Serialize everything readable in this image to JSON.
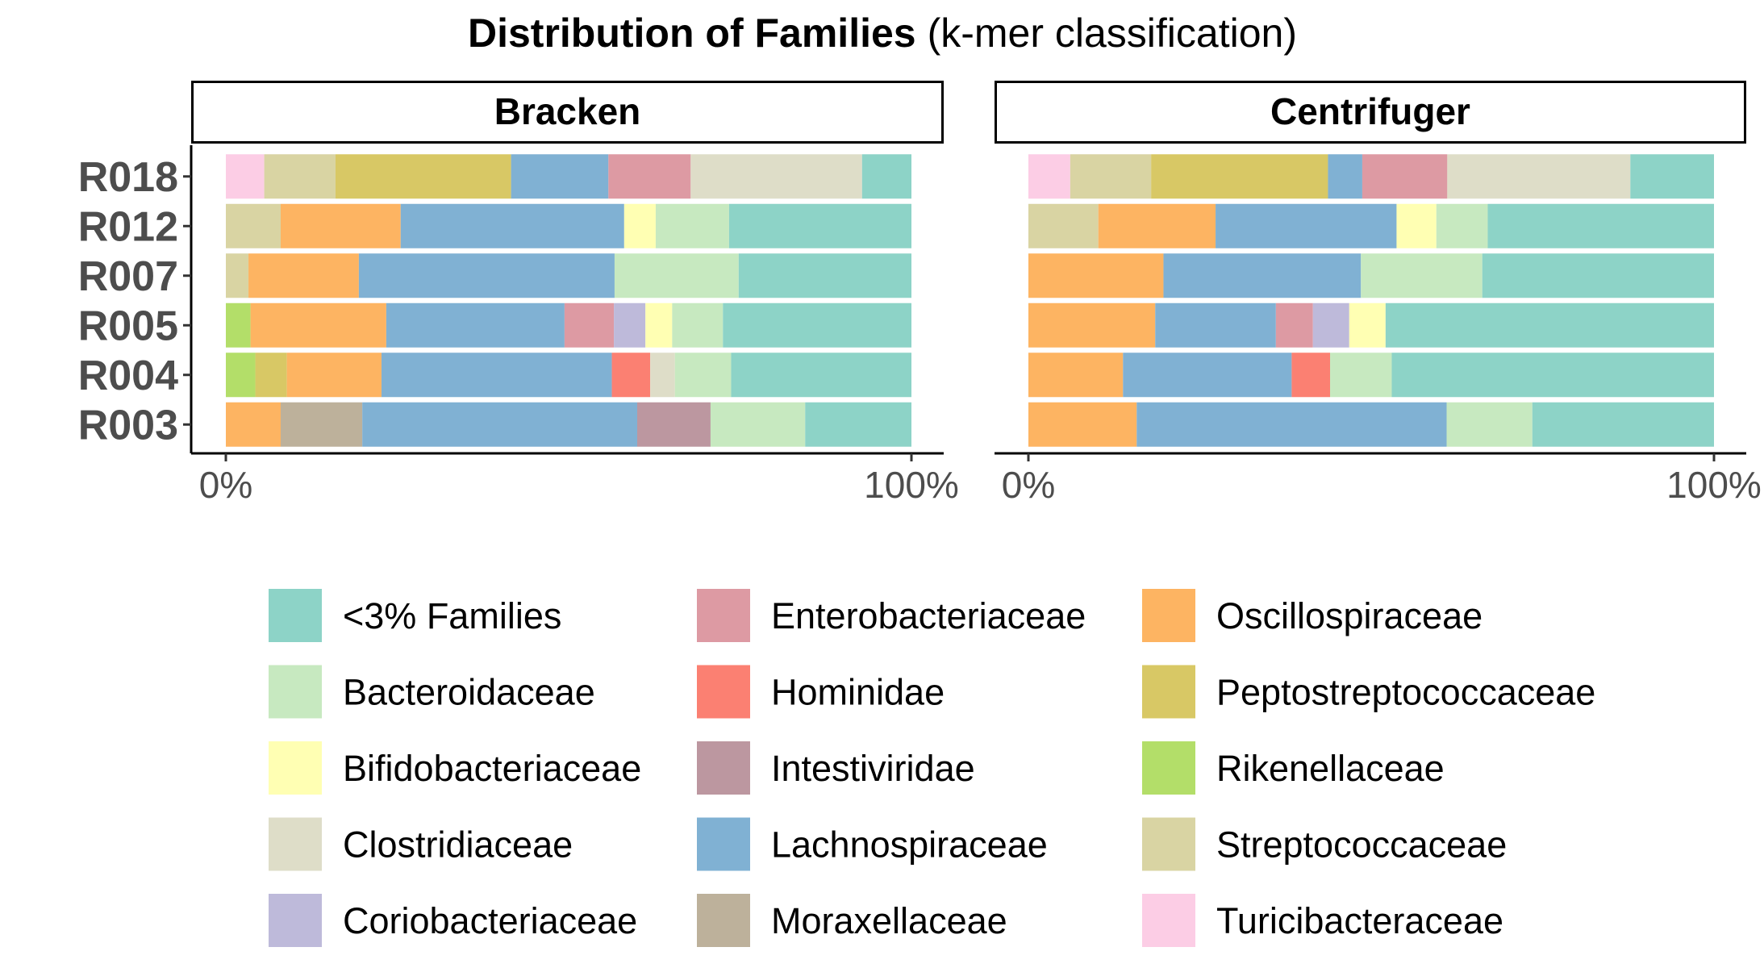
{
  "chart_data": {
    "type": "bar",
    "orientation": "horizontal",
    "stacked": true,
    "normalized": true,
    "title": "Distribution of Families",
    "subtitle": "(k-mer classification)",
    "x_axis": {
      "range": [
        0,
        100
      ],
      "ticks": [
        0,
        100
      ],
      "tick_labels": [
        "0%",
        "100%"
      ]
    },
    "categories": [
      "R018",
      "R012",
      "R007",
      "R005",
      "R004",
      "R003"
    ],
    "colors": {
      "<3% Families": "#8dd3c7",
      "Bacteroidaceae": "#c7e9c0",
      "Bifidobacteriaceae": "#ffffb3",
      "Clostridiaceae": "#deddc8",
      "Coriobacteriaceae": "#bebada",
      "Enterobacteriaceae": "#dd9aa3",
      "Hominidae": "#fb8072",
      "Intestiviridae": "#bc97a0",
      "Lachnospiraceae": "#80b1d3",
      "Moraxellaceae": "#bdb19b",
      "Oscillospiraceae": "#fdb462",
      "Peptostreptococcaceae": "#d8c865",
      "Rikenellaceae": "#b3de69",
      "Streptococcaceae": "#d9d4a3",
      "Turicibacteraceae": "#fccde5"
    },
    "legend": {
      "placement": "bottom",
      "items": [
        "<3% Families",
        "Bacteroidaceae",
        "Bifidobacteriaceae",
        "Clostridiaceae",
        "Coriobacteriaceae",
        "Enterobacteriaceae",
        "Hominidae",
        "Intestiviridae",
        "Lachnospiraceae",
        "Moraxellaceae",
        "Oscillospiraceae",
        "Peptostreptococcaceae",
        "Rikenellaceae",
        "Streptococcaceae",
        "Turicibacteraceae"
      ]
    },
    "panels": [
      {
        "name": "Bracken",
        "samples": [
          {
            "sample": "R018",
            "segments": [
              {
                "family": "Turicibacteraceae",
                "value": 5.6
              },
              {
                "family": "Streptococcaceae",
                "value": 10.4
              },
              {
                "family": "Peptostreptococcaceae",
                "value": 25.6
              },
              {
                "family": "Lachnospiraceae",
                "value": 14.2
              },
              {
                "family": "Enterobacteriaceae",
                "value": 12.0
              },
              {
                "family": "Clostridiaceae",
                "value": 25.0
              },
              {
                "family": "<3% Families",
                "value": 7.2
              }
            ]
          },
          {
            "sample": "R012",
            "segments": [
              {
                "family": "Streptococcaceae",
                "value": 8.0
              },
              {
                "family": "Oscillospiraceae",
                "value": 17.5
              },
              {
                "family": "Lachnospiraceae",
                "value": 32.6
              },
              {
                "family": "Bifidobacteriaceae",
                "value": 4.6
              },
              {
                "family": "Bacteroidaceae",
                "value": 10.7
              },
              {
                "family": "<3% Families",
                "value": 26.6
              }
            ]
          },
          {
            "sample": "R007",
            "segments": [
              {
                "family": "Streptococcaceae",
                "value": 3.3
              },
              {
                "family": "Oscillospiraceae",
                "value": 16.1
              },
              {
                "family": "Lachnospiraceae",
                "value": 37.3
              },
              {
                "family": "Bacteroidaceae",
                "value": 18.1
              },
              {
                "family": "<3% Families",
                "value": 25.2
              }
            ]
          },
          {
            "sample": "R005",
            "segments": [
              {
                "family": "Rikenellaceae",
                "value": 3.6
              },
              {
                "family": "Oscillospiraceae",
                "value": 19.8
              },
              {
                "family": "Lachnospiraceae",
                "value": 26.0
              },
              {
                "family": "Enterobacteriaceae",
                "value": 7.2
              },
              {
                "family": "Coriobacteriaceae",
                "value": 4.6
              },
              {
                "family": "Bifidobacteriaceae",
                "value": 3.9
              },
              {
                "family": "Bacteroidaceae",
                "value": 7.4
              },
              {
                "family": "<3% Families",
                "value": 27.5
              }
            ]
          },
          {
            "sample": "R004",
            "segments": [
              {
                "family": "Rikenellaceae",
                "value": 4.3
              },
              {
                "family": "Peptostreptococcaceae",
                "value": 4.6
              },
              {
                "family": "Oscillospiraceae",
                "value": 13.8
              },
              {
                "family": "Lachnospiraceae",
                "value": 33.6
              },
              {
                "family": "Hominidae",
                "value": 5.6
              },
              {
                "family": "Clostridiaceae",
                "value": 3.6
              },
              {
                "family": "Bacteroidaceae",
                "value": 8.2
              },
              {
                "family": "<3% Families",
                "value": 26.3
              }
            ]
          },
          {
            "sample": "R003",
            "segments": [
              {
                "family": "Oscillospiraceae",
                "value": 8.0
              },
              {
                "family": "Moraxellaceae",
                "value": 11.9
              },
              {
                "family": "Lachnospiraceae",
                "value": 40.1
              },
              {
                "family": "Intestiviridae",
                "value": 10.7
              },
              {
                "family": "Bacteroidaceae",
                "value": 13.8
              },
              {
                "family": "<3% Families",
                "value": 15.5
              }
            ]
          }
        ]
      },
      {
        "name": "Centrifuger",
        "samples": [
          {
            "sample": "R018",
            "segments": [
              {
                "family": "Turicibacteraceae",
                "value": 6.1
              },
              {
                "family": "Streptococcaceae",
                "value": 11.8
              },
              {
                "family": "Peptostreptococcaceae",
                "value": 25.8
              },
              {
                "family": "Lachnospiraceae",
                "value": 5.0
              },
              {
                "family": "Enterobacteriaceae",
                "value": 12.4
              },
              {
                "family": "Clostridiaceae",
                "value": 26.7
              },
              {
                "family": "<3% Families",
                "value": 12.2
              }
            ]
          },
          {
            "sample": "R012",
            "segments": [
              {
                "family": "Streptococcaceae",
                "value": 10.2
              },
              {
                "family": "Oscillospiraceae",
                "value": 17.1
              },
              {
                "family": "Lachnospiraceae",
                "value": 26.4
              },
              {
                "family": "Bifidobacteriaceae",
                "value": 5.8
              },
              {
                "family": "Bacteroidaceae",
                "value": 7.5
              },
              {
                "family": "<3% Families",
                "value": 33.0
              }
            ]
          },
          {
            "sample": "R007",
            "segments": [
              {
                "family": "Oscillospiraceae",
                "value": 19.7
              },
              {
                "family": "Lachnospiraceae",
                "value": 28.8
              },
              {
                "family": "Bacteroidaceae",
                "value": 17.7
              },
              {
                "family": "<3% Families",
                "value": 33.8
              }
            ]
          },
          {
            "sample": "R005",
            "segments": [
              {
                "family": "Oscillospiraceae",
                "value": 18.5
              },
              {
                "family": "Lachnospiraceae",
                "value": 17.6
              },
              {
                "family": "Enterobacteriaceae",
                "value": 5.4
              },
              {
                "family": "Coriobacteriaceae",
                "value": 5.3
              },
              {
                "family": "Bifidobacteriaceae",
                "value": 5.3
              },
              {
                "family": "<3% Families",
                "value": 47.9
              }
            ]
          },
          {
            "sample": "R004",
            "segments": [
              {
                "family": "Oscillospiraceae",
                "value": 13.8
              },
              {
                "family": "Lachnospiraceae",
                "value": 24.6
              },
              {
                "family": "Hominidae",
                "value": 5.6
              },
              {
                "family": "Bacteroidaceae",
                "value": 9.0
              },
              {
                "family": "<3% Families",
                "value": 47.0
              }
            ]
          },
          {
            "sample": "R003",
            "segments": [
              {
                "family": "Oscillospiraceae",
                "value": 15.8
              },
              {
                "family": "Lachnospiraceae",
                "value": 45.2
              },
              {
                "family": "Bacteroidaceae",
                "value": 12.5
              },
              {
                "family": "<3% Families",
                "value": 26.5
              }
            ]
          }
        ]
      }
    ]
  }
}
